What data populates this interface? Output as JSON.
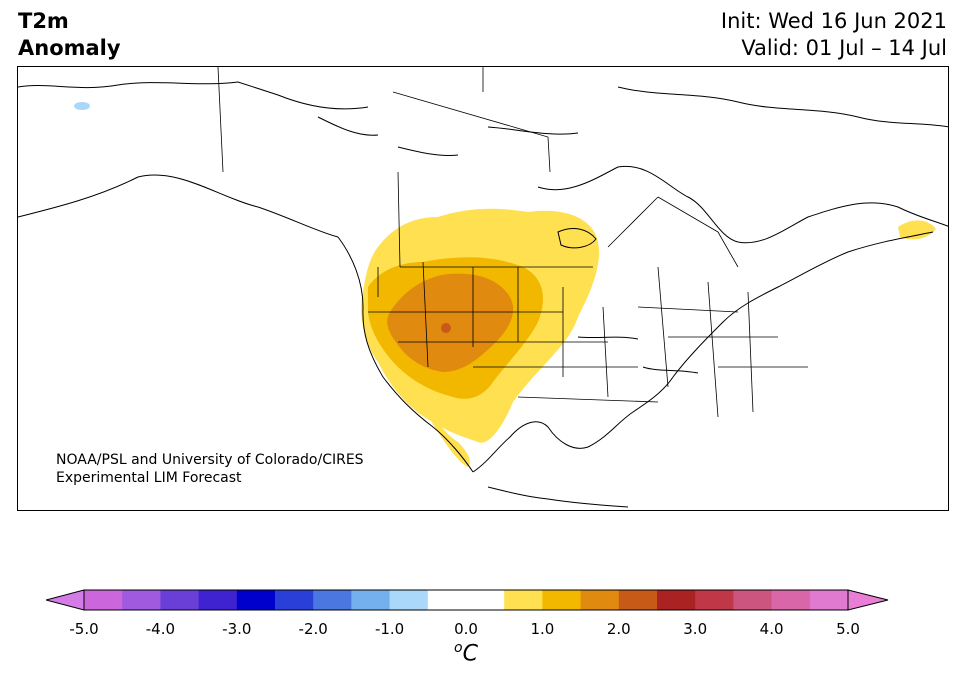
{
  "title": {
    "line1": "T2m",
    "line2": "Anomaly",
    "init": "Init: Wed 16 Jun 2021",
    "valid": "Valid: 01 Jul – 14 Jul"
  },
  "credit": {
    "line1": "NOAA/PSL and University of Colorado/CIRES",
    "line2": "Experimental LIM Forecast"
  },
  "colorbar": {
    "unit_sup": "o",
    "unit": "C",
    "ticks": [
      "-5.0",
      "-4.0",
      "-3.0",
      "-2.0",
      "-1.0",
      "0.0",
      "1.0",
      "2.0",
      "3.0",
      "4.0",
      "5.0"
    ],
    "tick_values": [
      -5,
      -4,
      -3,
      -2,
      -1,
      0,
      1,
      2,
      3,
      4,
      5
    ],
    "range": [
      -5,
      5
    ],
    "step": 0.5,
    "extend": "both",
    "colors": [
      "#cc66dd",
      "#a05ae0",
      "#6a3fd8",
      "#3f22d0",
      "#0000cc",
      "#2a3fd8",
      "#4a78e0",
      "#75b0ee",
      "#aad8fa",
      "#ffffff",
      "#ffffff",
      "#ffe050",
      "#f2b800",
      "#e08a10",
      "#c85a18",
      "#aa2222",
      "#c03848",
      "#cc5580",
      "#d866a8",
      "#e07ad0"
    ],
    "under_color": "#d37ce8",
    "over_color": "#ea7ed6"
  },
  "map": {
    "land_color": "#ffffff",
    "boundary_color": "#000000",
    "anomaly_colors": {
      "light": "#ffe050",
      "medium": "#f2b800",
      "strong": "#e08a10",
      "peak": "#c85a18",
      "lakes": "#aad8fa"
    }
  }
}
